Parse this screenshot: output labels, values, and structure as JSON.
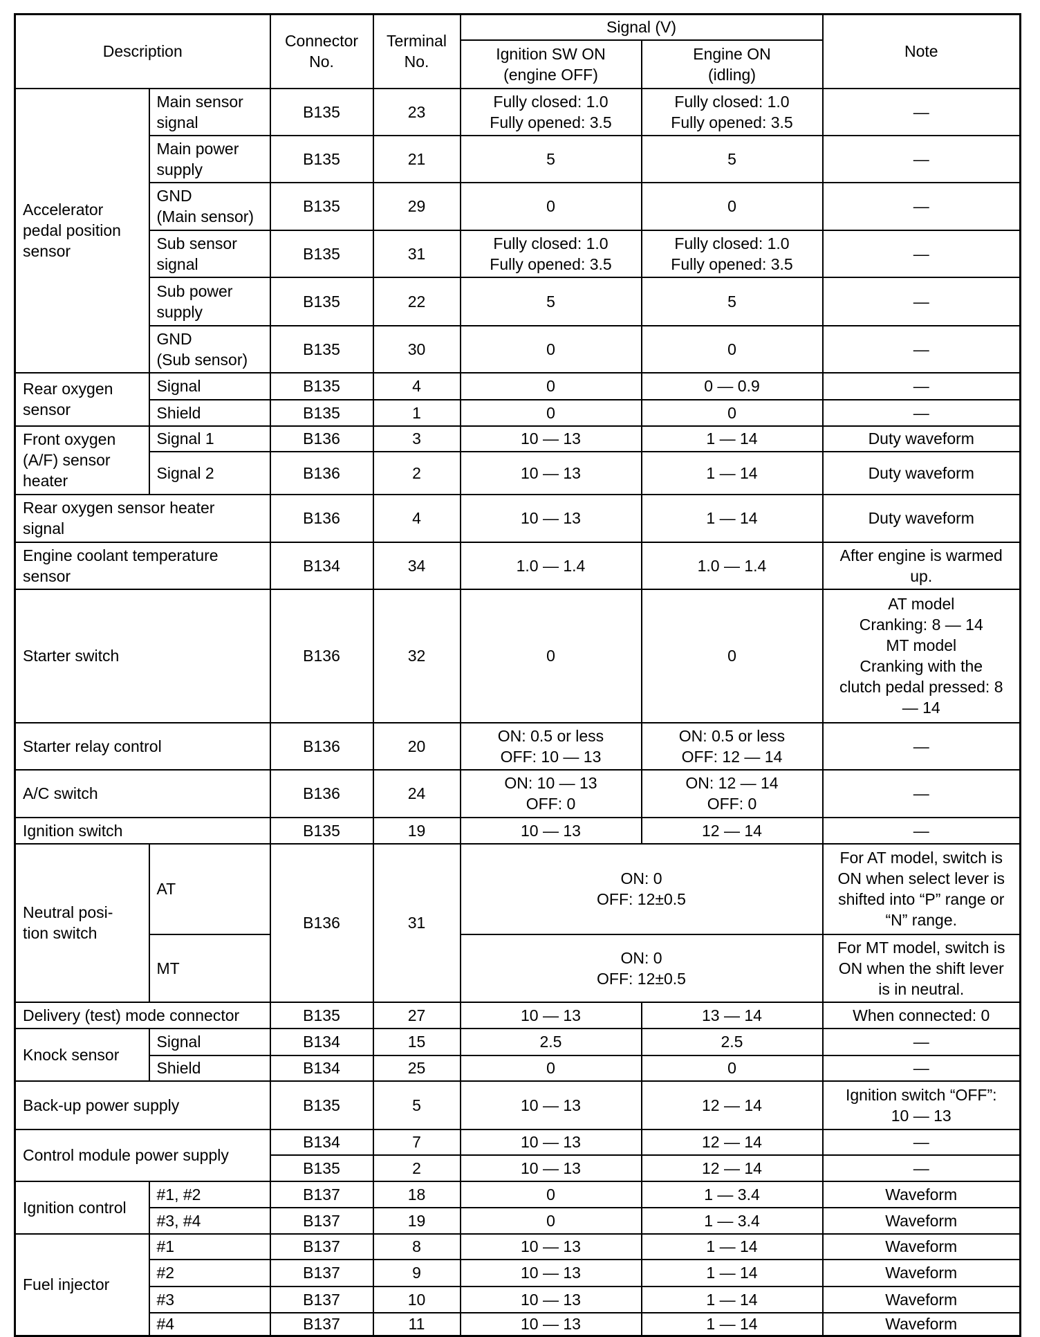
{
  "header": {
    "description": "Description",
    "connector": "Connector\nNo.",
    "terminal": "Terminal\nNo.",
    "signal": "Signal (V)",
    "ign_on": "Ignition SW ON\n(engine OFF)",
    "engine_on": "Engine ON\n(idling)",
    "note": "Note"
  },
  "groups": [
    {
      "description": "Accelerator\npedal position\nsensor",
      "items": [
        {
          "sub": "Main sensor\nsignal",
          "connector": "B135",
          "terminal": "23",
          "ign": "Fully closed: 1.0\nFully opened: 3.5",
          "eng": "Fully closed: 1.0\nFully opened: 3.5",
          "note": "—"
        },
        {
          "sub": "Main power\nsupply",
          "connector": "B135",
          "terminal": "21",
          "ign": "5",
          "eng": "5",
          "note": "—"
        },
        {
          "sub": "GND\n(Main sensor)",
          "connector": "B135",
          "terminal": "29",
          "ign": "0",
          "eng": "0",
          "note": "—"
        },
        {
          "sub": "Sub sensor\nsignal",
          "connector": "B135",
          "terminal": "31",
          "ign": "Fully closed: 1.0\nFully opened: 3.5",
          "eng": "Fully closed: 1.0\nFully opened: 3.5",
          "note": "—"
        },
        {
          "sub": "Sub power\nsupply",
          "connector": "B135",
          "terminal": "22",
          "ign": "5",
          "eng": "5",
          "note": "—"
        },
        {
          "sub": "GND\n(Sub sensor)",
          "connector": "B135",
          "terminal": "30",
          "ign": "0",
          "eng": "0",
          "note": "—"
        }
      ]
    },
    {
      "description": "Rear oxygen\nsensor",
      "items": [
        {
          "sub": "Signal",
          "connector": "B135",
          "terminal": "4",
          "ign": "0",
          "eng": "0 — 0.9",
          "note": "—"
        },
        {
          "sub": "Shield",
          "connector": "B135",
          "terminal": "1",
          "ign": "0",
          "eng": "0",
          "note": "—"
        }
      ]
    },
    {
      "description": "Front oxygen\n(A/F) sensor\nheater",
      "items": [
        {
          "sub": "Signal 1",
          "connector": "B136",
          "terminal": "3",
          "ign": "10 — 13",
          "eng": "1 — 14",
          "note": "Duty waveform"
        },
        {
          "sub": "Signal 2",
          "connector": "B136",
          "terminal": "2",
          "ign": "10 — 13",
          "eng": "1 — 14",
          "note": "Duty waveform"
        }
      ]
    },
    {
      "description": "Rear oxygen sensor heater\nsignal",
      "items": [
        {
          "connector": "B136",
          "terminal": "4",
          "ign": "10 — 13",
          "eng": "1 — 14",
          "note": "Duty waveform"
        }
      ]
    },
    {
      "description": "Engine coolant temperature\nsensor",
      "items": [
        {
          "connector": "B134",
          "terminal": "34",
          "ign": "1.0 — 1.4",
          "eng": "1.0 — 1.4",
          "note": "After engine is warmed\nup."
        }
      ]
    },
    {
      "description": "Starter switch",
      "items": [
        {
          "connector": "B136",
          "terminal": "32",
          "ign": "0",
          "eng": "0",
          "note": "AT model\nCranking: 8 — 14\nMT model\nCranking with the\nclutch pedal pressed: 8\n— 14"
        }
      ]
    },
    {
      "description": "Starter relay control",
      "items": [
        {
          "connector": "B136",
          "terminal": "20",
          "ign": "ON: 0.5 or less\nOFF: 10 — 13",
          "eng": "ON: 0.5 or less\nOFF: 12 — 14",
          "note": "—"
        }
      ]
    },
    {
      "description": "A/C switch",
      "items": [
        {
          "connector": "B136",
          "terminal": "24",
          "ign": "ON: 10 — 13\nOFF: 0",
          "eng": "ON: 12 — 14\nOFF: 0",
          "note": "—"
        }
      ]
    },
    {
      "description": "Ignition switch",
      "items": [
        {
          "connector": "B135",
          "terminal": "19",
          "ign": "10 — 13",
          "eng": "12 — 14",
          "note": "—"
        }
      ]
    },
    {
      "description": "Neutral posi-\ntion switch",
      "connector": "B136",
      "terminal": "31",
      "items": [
        {
          "sub": "AT",
          "signal": "ON: 0\nOFF: 12±0.5",
          "note": "For AT model, switch is\nON when select lever is\nshifted into “P” range or\n“N” range."
        },
        {
          "sub": "MT",
          "signal": "ON: 0\nOFF: 12±0.5",
          "note": "For MT model, switch is\nON when the shift lever\nis in neutral."
        }
      ]
    },
    {
      "description": "Delivery (test) mode connector",
      "items": [
        {
          "connector": "B135",
          "terminal": "27",
          "ign": "10 — 13",
          "eng": "13 — 14",
          "note": "When connected: 0"
        }
      ]
    },
    {
      "description": "Knock sensor",
      "items": [
        {
          "sub": "Signal",
          "connector": "B134",
          "terminal": "15",
          "ign": "2.5",
          "eng": "2.5",
          "note": "—"
        },
        {
          "sub": "Shield",
          "connector": "B134",
          "terminal": "25",
          "ign": "0",
          "eng": "0",
          "note": "—"
        }
      ]
    },
    {
      "description": "Back-up power supply",
      "items": [
        {
          "connector": "B135",
          "terminal": "5",
          "ign": "10 — 13",
          "eng": "12 — 14",
          "note": "Ignition switch “OFF”:\n10 — 13"
        }
      ]
    },
    {
      "description": "Control module power supply",
      "items": [
        {
          "connector": "B134",
          "terminal": "7",
          "ign": "10 — 13",
          "eng": "12 — 14",
          "note": "—"
        },
        {
          "connector": "B135",
          "terminal": "2",
          "ign": "10 — 13",
          "eng": "12 — 14",
          "note": "—"
        }
      ]
    },
    {
      "description": "Ignition control",
      "items": [
        {
          "sub": "#1, #2",
          "connector": "B137",
          "terminal": "18",
          "ign": "0",
          "eng": "1 — 3.4",
          "note": "Waveform"
        },
        {
          "sub": "#3, #4",
          "connector": "B137",
          "terminal": "19",
          "ign": "0",
          "eng": "1 — 3.4",
          "note": "Waveform"
        }
      ]
    },
    {
      "description": "Fuel injector",
      "items": [
        {
          "sub": "#1",
          "connector": "B137",
          "terminal": "8",
          "ign": "10 — 13",
          "eng": "1 — 14",
          "note": "Waveform"
        },
        {
          "sub": "#2",
          "connector": "B137",
          "terminal": "9",
          "ign": "10 — 13",
          "eng": "1 — 14",
          "note": "Waveform"
        },
        {
          "sub": "#3",
          "connector": "B137",
          "terminal": "10",
          "ign": "10 — 13",
          "eng": "1 — 14",
          "note": "Waveform"
        },
        {
          "sub": "#4",
          "connector": "B137",
          "terminal": "11",
          "ign": "10 — 13",
          "eng": "1 — 14",
          "note": "Waveform"
        }
      ]
    }
  ]
}
